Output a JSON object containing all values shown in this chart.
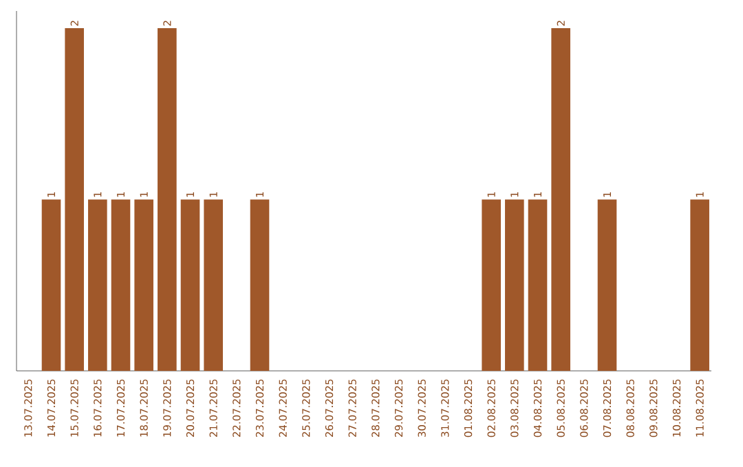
{
  "chart_data": {
    "type": "bar",
    "categories": [
      "13.07.2025",
      "14.07.2025",
      "15.07.2025",
      "16.07.2025",
      "17.07.2025",
      "18.07.2025",
      "19.07.2025",
      "20.07.2025",
      "21.07.2025",
      "22.07.2025",
      "23.07.2025",
      "24.07.2025",
      "25.07.2025",
      "26.07.2025",
      "27.07.2025",
      "28.07.2025",
      "29.07.2025",
      "30.07.2025",
      "31.07.2025",
      "01.08.2025",
      "02.08.2025",
      "03.08.2025",
      "04.08.2025",
      "05.08.2025",
      "06.08.2025",
      "07.08.2025",
      "08.08.2025",
      "09.08.2025",
      "10.08.2025",
      "11.08.2025"
    ],
    "values": [
      0,
      1,
      2,
      1,
      1,
      1,
      2,
      1,
      1,
      0,
      1,
      0,
      0,
      0,
      0,
      0,
      0,
      0,
      0,
      0,
      1,
      1,
      1,
      2,
      0,
      1,
      0,
      0,
      0,
      1
    ],
    "value_labels": [
      null,
      "1",
      "2",
      "1",
      "1",
      "1",
      "2",
      "1",
      "1",
      null,
      "1",
      null,
      null,
      null,
      null,
      null,
      null,
      null,
      null,
      null,
      "1",
      "1",
      "1",
      "2",
      null,
      "1",
      null,
      null,
      null,
      "1"
    ],
    "color": "#a0582a"
  }
}
